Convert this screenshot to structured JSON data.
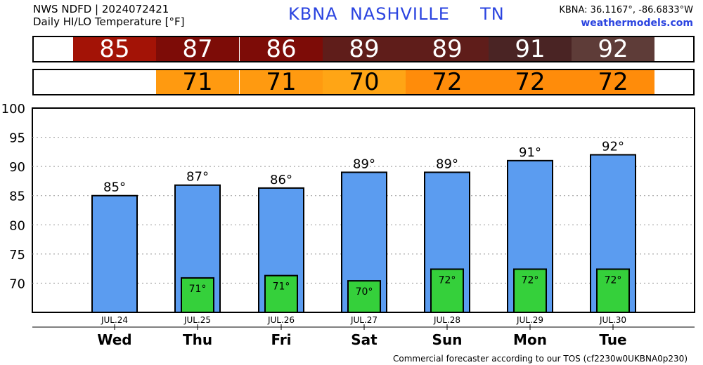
{
  "header": {
    "line1": "NWS NDFD | 2024072421",
    "line2": "Daily HI/LO Temperature [°F]",
    "station": "KBNA",
    "city": "NASHVILLE",
    "state": "TN",
    "coords": "KBNA: 36.1167°, -86.6833°W",
    "site": "weathermodels.com"
  },
  "hi_strip": [
    {
      "value": "85",
      "color": "#a31306"
    },
    {
      "value": "87",
      "color": "#7d0c07"
    },
    {
      "value": "86",
      "color": "#7d0c07"
    },
    {
      "value": "89",
      "color": "#5f1d1a"
    },
    {
      "value": "89",
      "color": "#5f1d1a"
    },
    {
      "value": "91",
      "color": "#4a2424"
    },
    {
      "value": "92",
      "color": "#5e3c38"
    }
  ],
  "lo_strip": [
    {
      "value": "",
      "color": "#ffffff"
    },
    {
      "value": "71",
      "color": "#ff9a10"
    },
    {
      "value": "71",
      "color": "#ff9a10"
    },
    {
      "value": "70",
      "color": "#ffa515"
    },
    {
      "value": "72",
      "color": "#ff8c0a"
    },
    {
      "value": "72",
      "color": "#ff8c0a"
    },
    {
      "value": "72",
      "color": "#ff8c0a"
    }
  ],
  "chart_data": {
    "type": "bar",
    "categories": [
      "JUL.24",
      "JUL.25",
      "JUL.26",
      "JUL.27",
      "JUL.28",
      "JUL.29",
      "JUL.30"
    ],
    "days": [
      "Wed",
      "Thu",
      "Fri",
      "Sat",
      "Sun",
      "Mon",
      "Tue"
    ],
    "series": [
      {
        "values": [
          85,
          86.8,
          86.3,
          89,
          89,
          91,
          92
        ],
        "labels": [
          "85°",
          "87°",
          "86°",
          "89°",
          "89°",
          "91°",
          "92°"
        ],
        "color": "#5b9cf0"
      },
      {
        "values": [
          null,
          70.9,
          71.3,
          70.4,
          72.4,
          72.4,
          72.4
        ],
        "labels": [
          "",
          "71°",
          "71°",
          "70°",
          "72°",
          "72°",
          "72°"
        ],
        "color": "#35d03b"
      }
    ],
    "ylim": [
      65,
      100
    ],
    "yticks": [
      70,
      75,
      80,
      85,
      90,
      95,
      100
    ],
    "grid": true
  },
  "footer": "Commercial forecaster according to our TOS (cf2230w0UKBNA0p230)"
}
